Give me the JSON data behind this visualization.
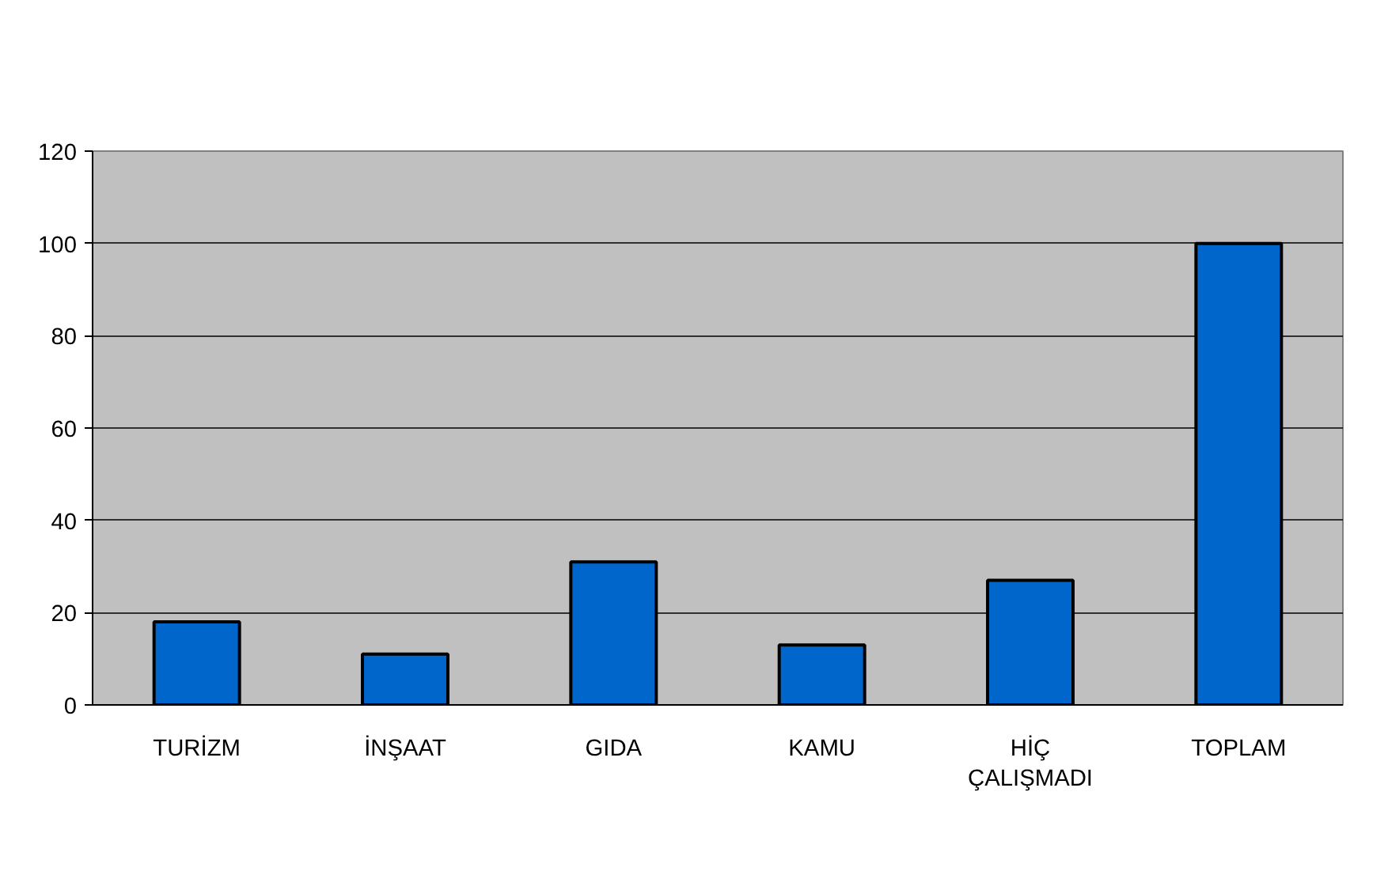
{
  "chart_data": {
    "type": "bar",
    "categories": [
      "TURİZM",
      "İNŞAAT",
      "GIDA",
      "KAMU",
      "HİÇ\nÇALIŞMADI",
      "TOPLAM"
    ],
    "values": [
      18,
      11,
      31,
      13,
      27,
      100
    ],
    "color": "#0066cc",
    "ylim": [
      0,
      120
    ],
    "yticks": [
      0,
      20,
      40,
      60,
      80,
      100,
      120
    ],
    "grid": "y"
  }
}
